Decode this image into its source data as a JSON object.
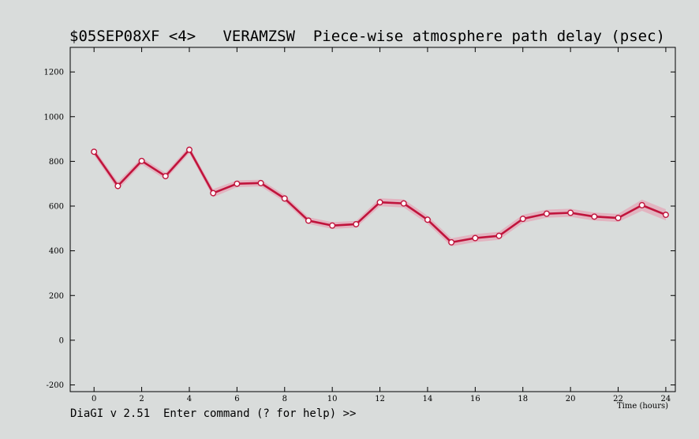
{
  "header": {
    "title": "$05SEP08XF <4>   VERAMZSW  Piece-wise atmosphere path delay (psec)"
  },
  "footer": {
    "prompt": "DiaGI v 2.51  Enter command (? for help) >>"
  },
  "chart_data": {
    "type": "line",
    "title": "$05SEP08XF <4>   VERAMZSW  Piece-wise atmosphere path delay (psec)",
    "xlabel": "Time (hours)",
    "ylabel": "",
    "xlim": [
      -1,
      24.4
    ],
    "ylim": [
      -230,
      1310
    ],
    "xticks": [
      0,
      2,
      4,
      6,
      8,
      10,
      12,
      14,
      16,
      18,
      20,
      22,
      24
    ],
    "yticks": [
      -200,
      0,
      200,
      400,
      600,
      800,
      1000,
      1200
    ],
    "grid": false,
    "legend": "none",
    "colors": {
      "line": "#c0143c",
      "band": "#e5a3b5",
      "marker_fill": "#ffffff",
      "background": "#d9dcdb",
      "axis": "#000000"
    },
    "series": [
      {
        "x": [
          0,
          1,
          2,
          3,
          4,
          5,
          6,
          7,
          8,
          9,
          10,
          11,
          12,
          13,
          14,
          15,
          16,
          17,
          18,
          19,
          20,
          21,
          22,
          23,
          24
        ],
        "y": [
          843,
          690,
          802,
          734,
          852,
          658,
          700,
          703,
          634,
          535,
          513,
          519,
          617,
          612,
          539,
          438,
          457,
          467,
          543,
          566,
          570,
          553,
          547,
          604,
          561
        ],
        "err": [
          15,
          18,
          15,
          15,
          15,
          18,
          15,
          15,
          15,
          15,
          15,
          15,
          18,
          18,
          18,
          18,
          18,
          18,
          18,
          18,
          18,
          18,
          18,
          25,
          25
        ]
      }
    ]
  }
}
